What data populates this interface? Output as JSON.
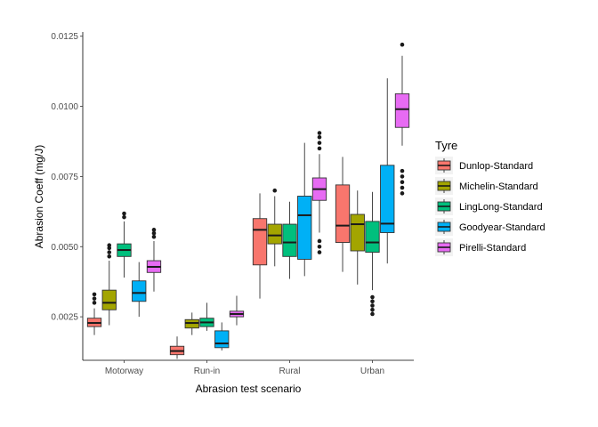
{
  "chart_data": {
    "type": "box",
    "xlabel": "Abrasion test scenario",
    "ylabel": "Abrasion Coeff (mg/J)",
    "ylim": [
      0.00095,
      0.01265
    ],
    "yticks": [
      "0.0025",
      "0.0050",
      "0.0075",
      "0.0100",
      "0.0125"
    ],
    "ytick_values": [
      0.0025,
      0.005,
      0.0075,
      0.01,
      0.0125
    ],
    "categories": [
      "Motorway",
      "Run-in",
      "Rural",
      "Urban"
    ],
    "legend_title": "Tyre",
    "legend_position": "right",
    "grid": false,
    "series": [
      {
        "name": "Dunlop-Standard",
        "color": "#F8766D",
        "boxes": [
          {
            "min": 0.00185,
            "q1": 0.00215,
            "median": 0.00228,
            "q3": 0.00245,
            "max": 0.0028,
            "outliers": [
              0.003,
              0.00315,
              0.0033
            ]
          },
          {
            "min": 0.001,
            "q1": 0.00115,
            "median": 0.00128,
            "q3": 0.00145,
            "max": 0.0018,
            "outliers": []
          },
          {
            "min": 0.00315,
            "q1": 0.00435,
            "median": 0.0056,
            "q3": 0.006,
            "max": 0.0069,
            "outliers": []
          },
          {
            "min": 0.0041,
            "q1": 0.00515,
            "median": 0.00575,
            "q3": 0.0072,
            "max": 0.0082,
            "outliers": []
          }
        ]
      },
      {
        "name": "Michelin-Standard",
        "color": "#A3A500",
        "boxes": [
          {
            "min": 0.0022,
            "q1": 0.00275,
            "median": 0.003,
            "q3": 0.00345,
            "max": 0.0045,
            "outliers": [
              0.00465,
              0.0048,
              0.00495,
              0.00505
            ]
          },
          {
            "min": 0.00185,
            "q1": 0.0021,
            "median": 0.00228,
            "q3": 0.0024,
            "max": 0.00265,
            "outliers": []
          },
          {
            "min": 0.0043,
            "q1": 0.0051,
            "median": 0.0054,
            "q3": 0.0058,
            "max": 0.0068,
            "outliers": [
              0.007
            ]
          },
          {
            "min": 0.00365,
            "q1": 0.00485,
            "median": 0.0058,
            "q3": 0.00615,
            "max": 0.007,
            "outliers": []
          }
        ]
      },
      {
        "name": "LingLong-Standard",
        "color": "#00BF7D",
        "boxes": [
          {
            "min": 0.0039,
            "q1": 0.00465,
            "median": 0.00488,
            "q3": 0.0051,
            "max": 0.0059,
            "outliers": [
              0.00605,
              0.00618
            ]
          },
          {
            "min": 0.002,
            "q1": 0.00215,
            "median": 0.0023,
            "q3": 0.00245,
            "max": 0.003,
            "outliers": []
          },
          {
            "min": 0.00385,
            "q1": 0.00465,
            "median": 0.00515,
            "q3": 0.0058,
            "max": 0.0066,
            "outliers": []
          },
          {
            "min": 0.00345,
            "q1": 0.0048,
            "median": 0.00515,
            "q3": 0.0059,
            "max": 0.00695,
            "outliers": [
              0.0026,
              0.00275,
              0.0029,
              0.00305,
              0.0032
            ]
          }
        ]
      },
      {
        "name": "Goodyear-Standard",
        "color": "#00B0F6",
        "boxes": [
          {
            "min": 0.0025,
            "q1": 0.00305,
            "median": 0.00335,
            "q3": 0.00378,
            "max": 0.00445,
            "outliers": []
          },
          {
            "min": 0.0013,
            "q1": 0.0014,
            "median": 0.00155,
            "q3": 0.002,
            "max": 0.0023,
            "outliers": []
          },
          {
            "min": 0.00395,
            "q1": 0.00455,
            "median": 0.00612,
            "q3": 0.0068,
            "max": 0.0087,
            "outliers": []
          },
          {
            "min": 0.0044,
            "q1": 0.0055,
            "median": 0.00582,
            "q3": 0.0079,
            "max": 0.011,
            "outliers": []
          }
        ]
      },
      {
        "name": "Pirelli-Standard",
        "color": "#E76BF3",
        "boxes": [
          {
            "min": 0.0034,
            "q1": 0.00408,
            "median": 0.00428,
            "q3": 0.0045,
            "max": 0.0052,
            "outliers": [
              0.00535,
              0.00548,
              0.0056
            ]
          },
          {
            "min": 0.0022,
            "q1": 0.0025,
            "median": 0.0026,
            "q3": 0.0027,
            "max": 0.00325,
            "outliers": []
          },
          {
            "min": 0.0055,
            "q1": 0.00665,
            "median": 0.00705,
            "q3": 0.00745,
            "max": 0.0083,
            "outliers": [
              0.0048,
              0.005,
              0.0052,
              0.0085,
              0.0087,
              0.0089,
              0.00905
            ]
          },
          {
            "min": 0.0086,
            "q1": 0.00925,
            "median": 0.0099,
            "q3": 0.01045,
            "max": 0.0118,
            "outliers": [
              0.0069,
              0.0071,
              0.0073,
              0.0075,
              0.0077,
              0.0122
            ]
          }
        ]
      }
    ]
  }
}
